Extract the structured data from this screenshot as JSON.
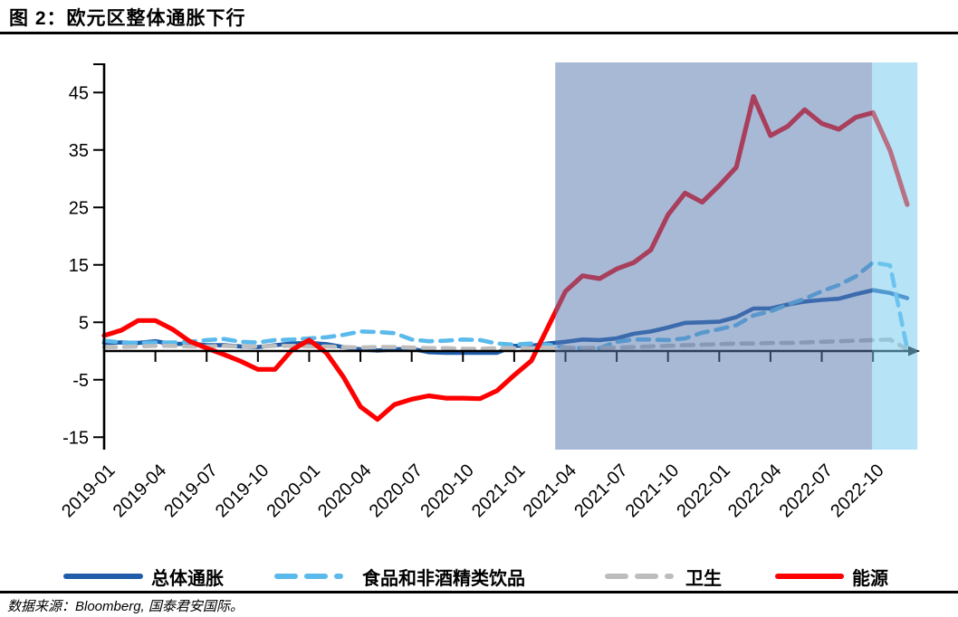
{
  "title": "图 2：欧元区整体通胀下行",
  "source_note": "数据来源：Bloomberg, 国泰君安国际。",
  "chart_data": {
    "type": "line",
    "title": "欧元区整体通胀下行",
    "x_start": "2019-01",
    "x_end": "2022-12",
    "x_tick_labels": [
      "2019-01",
      "2019-04",
      "2019-07",
      "2019-10",
      "2020-01",
      "2020-04",
      "2020-07",
      "2020-10",
      "2021-01",
      "2021-04",
      "2021-07",
      "2021-10",
      "2022-01",
      "2022-04",
      "2022-07",
      "2022-10"
    ],
    "y_ticks": [
      45,
      35,
      25,
      15,
      5,
      -5,
      -15
    ],
    "ylim": [
      -17,
      50
    ],
    "grid": false,
    "legend_position": "bottom",
    "axis_color": "#000000",
    "series": [
      {
        "key": "headline",
        "name": "总体通胀",
        "color": "#1F5CA9",
        "style": "solid",
        "values": [
          1.4,
          1.5,
          1.4,
          1.7,
          1.2,
          1.3,
          1.0,
          1.0,
          0.8,
          0.7,
          1.0,
          1.3,
          1.4,
          1.2,
          0.7,
          0.3,
          0.1,
          0.3,
          0.4,
          -0.2,
          -0.3,
          -0.3,
          -0.3,
          -0.3,
          0.9,
          0.9,
          1.3,
          1.6,
          2.0,
          1.9,
          2.2,
          3.0,
          3.4,
          4.1,
          4.9,
          5.0,
          5.1,
          5.9,
          7.4,
          7.4,
          8.1,
          8.6,
          8.9,
          9.1,
          9.9,
          10.6,
          10.1,
          9.2
        ]
      },
      {
        "key": "food",
        "name": "食品和非酒精类饮品",
        "color": "#5ABAEB",
        "style": "dashed",
        "values": [
          1.8,
          1.5,
          1.4,
          1.5,
          1.5,
          1.6,
          1.9,
          2.1,
          1.6,
          1.5,
          1.9,
          2.0,
          2.2,
          2.4,
          2.8,
          3.4,
          3.3,
          3.1,
          2.0,
          1.7,
          1.8,
          2.0,
          1.9,
          1.3,
          1.1,
          1.3,
          1.1,
          0.6,
          0.5,
          0.5,
          1.6,
          2.0,
          2.0,
          1.9,
          2.2,
          3.2,
          3.8,
          4.5,
          6.2,
          6.9,
          8.1,
          9.1,
          10.4,
          11.5,
          13.0,
          15.4,
          14.9,
          0.4
        ]
      },
      {
        "key": "health",
        "name": "卫生",
        "color": "#BDBDBD",
        "style": "dashed",
        "values": [
          0.7,
          0.7,
          0.8,
          0.9,
          0.9,
          0.8,
          0.8,
          0.9,
          0.8,
          0.8,
          0.9,
          0.9,
          0.8,
          0.8,
          0.7,
          0.6,
          0.7,
          0.7,
          0.6,
          0.5,
          0.5,
          0.4,
          0.4,
          0.5,
          0.5,
          0.5,
          0.6,
          0.6,
          0.5,
          0.6,
          0.6,
          0.7,
          0.8,
          0.9,
          1.0,
          1.1,
          1.2,
          1.3,
          1.3,
          1.4,
          1.4,
          1.5,
          1.6,
          1.7,
          1.8,
          1.9,
          2.0,
          0.3
        ]
      },
      {
        "key": "energy",
        "name": "能源",
        "color": "#FF0000",
        "style": "solid",
        "values": [
          2.7,
          3.6,
          5.3,
          5.3,
          3.8,
          1.7,
          0.5,
          -0.6,
          -1.8,
          -3.2,
          -3.2,
          0.2,
          1.9,
          -0.3,
          -4.5,
          -9.7,
          -11.9,
          -9.3,
          -8.4,
          -7.8,
          -8.2,
          -8.2,
          -8.3,
          -6.9,
          -4.2,
          -1.7,
          4.3,
          10.4,
          13.1,
          12.6,
          14.3,
          15.4,
          17.6,
          23.7,
          27.5,
          25.9,
          28.8,
          32.0,
          44.3,
          37.5,
          39.1,
          42.0,
          39.6,
          38.6,
          40.7,
          41.5,
          34.9,
          25.5
        ]
      }
    ],
    "regions": [
      {
        "name": "highlight-band-blue",
        "from_month_index": 26.4,
        "to_month_index": 44.95,
        "color": "rgba(88,120,177,0.52)"
      },
      {
        "name": "highlight-band-cyan",
        "from_month_index": 44.95,
        "to_month_index": 47.6,
        "color": "rgba(123,204,240,0.55)"
      }
    ]
  }
}
